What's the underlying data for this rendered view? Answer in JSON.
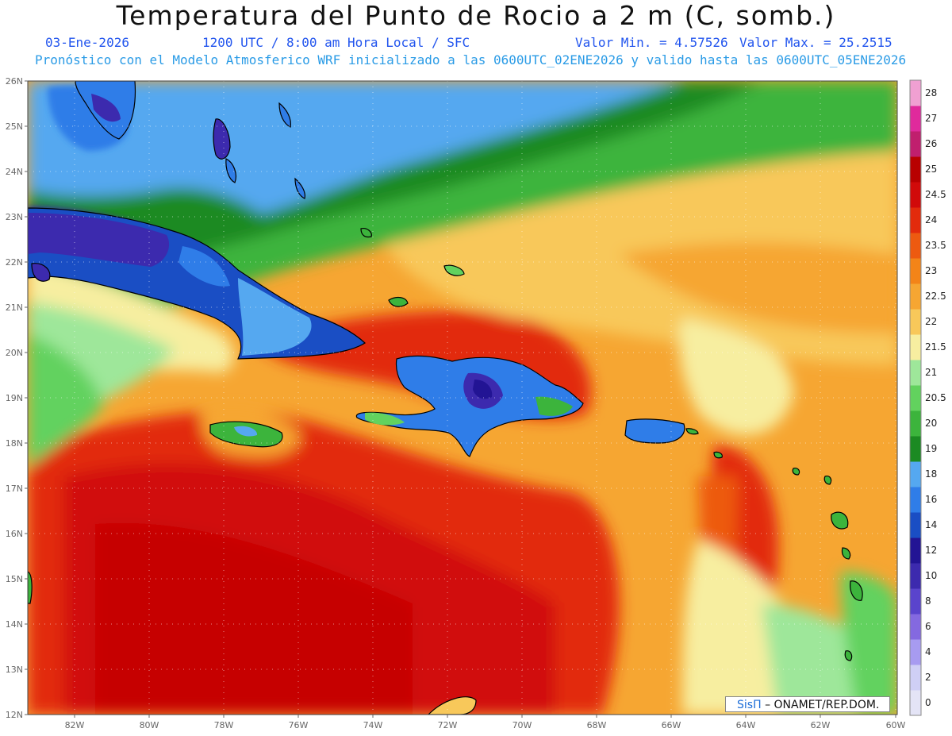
{
  "header": {
    "title": "Temperatura del Punto de Rocio a 2 m (C, somb.)",
    "date": "03-Ene-2026",
    "time": "1200 UTC / 8:00 am Hora Local / SFC",
    "min": "Valor Min. = 4.57526",
    "max": "Valor Max. = 25.2515",
    "forecast": "Pronóstico con el Modelo Atmosferico WRF inicializado a las 0600UTC_02ENE2026 y valido hasta las  0600UTC_05ENE2026"
  },
  "axes": {
    "lat_labels": [
      "26N",
      "25N",
      "24N",
      "23N",
      "22N",
      "21N",
      "20N",
      "19N",
      "18N",
      "17N",
      "16N",
      "15N",
      "14N",
      "13N",
      "12N"
    ],
    "lon_labels": [
      "82W",
      "80W",
      "78W",
      "76W",
      "74W",
      "72W",
      "70W",
      "68W",
      "66W",
      "64W",
      "62W",
      "60W"
    ]
  },
  "colorbar": {
    "levels": [
      "0",
      "2",
      "4",
      "6",
      "8",
      "10",
      "12",
      "14",
      "16",
      "18",
      "19",
      "20",
      "20.5",
      "21",
      "21.5",
      "22",
      "22.5",
      "23",
      "23.5",
      "24",
      "24.5",
      "25",
      "26",
      "27",
      "28"
    ],
    "colors": [
      "#e4e4f6",
      "#cfcff5",
      "#a79bf0",
      "#8469e0",
      "#5a44cc",
      "#3c2aae",
      "#221494",
      "#1a4ec4",
      "#2f7de8",
      "#55a8f0",
      "#1b8a22",
      "#3cb43c",
      "#62d25e",
      "#9ee79a",
      "#f7eea0",
      "#f8c85a",
      "#f6a632",
      "#f38418",
      "#ed5a10",
      "#e22b0c",
      "#d10a0a",
      "#b80000",
      "#c01f6e",
      "#e02a9c",
      "#f0a0d2"
    ]
  },
  "credit": {
    "brand": "SisΠ",
    "org": "– ONAMET/REP.DOM."
  }
}
